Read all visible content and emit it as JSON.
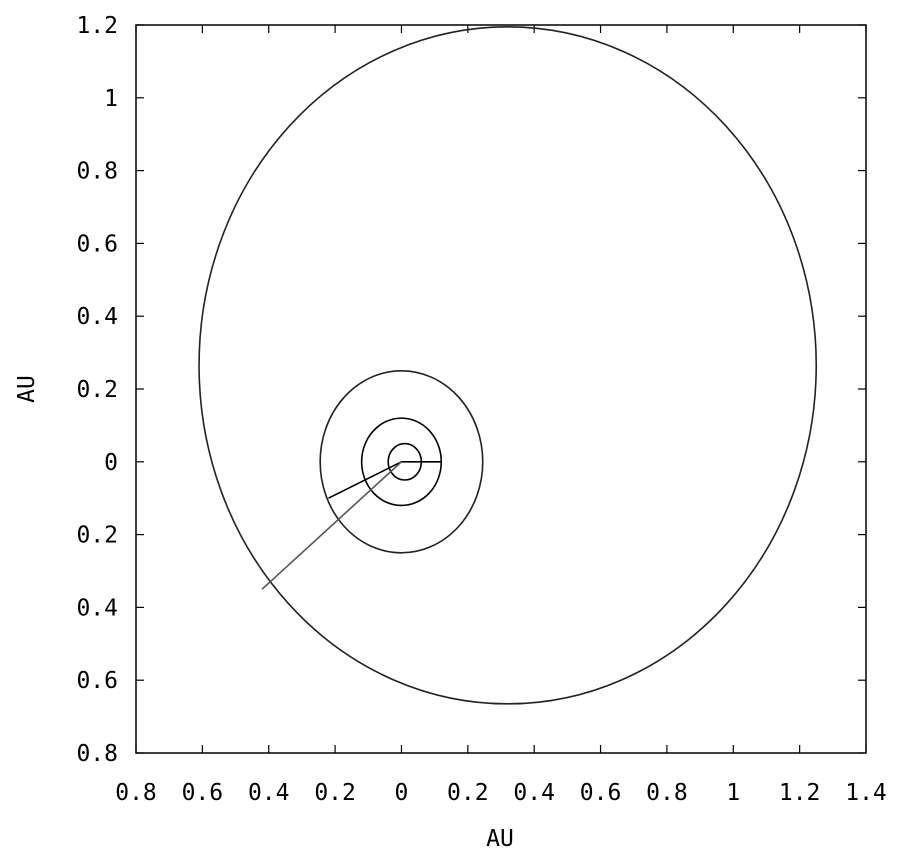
{
  "chart_data": {
    "type": "line",
    "xlabel": "AU",
    "ylabel": "AU",
    "xlim": [
      -0.8,
      1.4
    ],
    "ylim": [
      -0.8,
      1.2
    ],
    "x_ticks": [
      -0.8,
      -0.6,
      -0.4,
      -0.2,
      0,
      0.2,
      0.4,
      0.6,
      0.8,
      1,
      1.2,
      1.4
    ],
    "x_tick_labels": [
      "0.8",
      "0.6",
      "0.4",
      "0.2",
      "0",
      "0.2",
      "0.4",
      "0.6",
      "0.8",
      "1",
      "1.2",
      "1.4"
    ],
    "y_ticks": [
      1.2,
      1,
      0.8,
      0.6,
      0.4,
      0.2,
      0,
      -0.2,
      -0.4,
      -0.6,
      -0.8
    ],
    "y_tick_labels": [
      "1.2",
      "1",
      "0.8",
      "0.6",
      "0.4",
      "0.2",
      "0",
      "0.2",
      "0.4",
      "0.6",
      "0.8"
    ],
    "grid": false,
    "line_color": "#000000",
    "series": [
      {
        "center": [
          0.01,
          0.0
        ],
        "radii": [
          0.05,
          0.05
        ],
        "color": "#000000"
      },
      {
        "center": [
          0.0,
          0.0
        ],
        "radii": [
          0.12,
          0.12
        ],
        "color": "#000000"
      },
      {
        "center": [
          0.0,
          0.0
        ],
        "radii": [
          0.245,
          0.25
        ],
        "color": "#222222"
      },
      {
        "center": [
          0.32,
          0.265
        ],
        "radii": [
          0.93,
          0.93
        ],
        "color": "#222222"
      }
    ],
    "radial_lines": [
      {
        "from": [
          0,
          0
        ],
        "to": [
          0.12,
          0.0
        ],
        "color": "#000000"
      },
      {
        "from": [
          0,
          0
        ],
        "to": [
          -0.22,
          -0.1
        ],
        "color": "#000000"
      },
      {
        "from": [
          0,
          0
        ],
        "to": [
          -0.42,
          -0.35
        ],
        "color": "#555555"
      }
    ]
  }
}
